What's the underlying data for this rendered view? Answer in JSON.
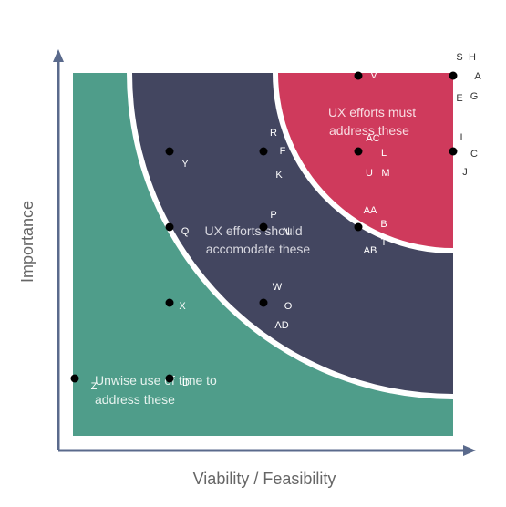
{
  "colors": {
    "green_zone": "#4f9d8a",
    "navy_zone": "#434660",
    "red_zone": "#cf3a5c",
    "axis": "#5a6a8c",
    "dot": "#000000"
  },
  "axes": {
    "x_title": "Viability / Feasibility",
    "y_title": "Importance"
  },
  "zones": {
    "green": [
      "Unwise use of time to",
      "address these"
    ],
    "navy": [
      "UX efforts should",
      "accomodate these"
    ],
    "red": [
      "UX efforts must",
      "address these"
    ]
  },
  "dots": [
    {
      "id": "dot-1",
      "col": 3,
      "row": 0
    },
    {
      "id": "dot-2",
      "col": 4,
      "row": 0
    },
    {
      "id": "dot-3",
      "col": 1,
      "row": 1
    },
    {
      "id": "dot-4",
      "col": 2,
      "row": 1
    },
    {
      "id": "dot-5",
      "col": 3,
      "row": 1
    },
    {
      "id": "dot-6",
      "col": 4,
      "row": 1
    },
    {
      "id": "dot-7",
      "col": 1,
      "row": 2
    },
    {
      "id": "dot-8",
      "col": 2,
      "row": 2
    },
    {
      "id": "dot-9",
      "col": 3,
      "row": 2
    },
    {
      "id": "dot-10",
      "col": 1,
      "row": 3
    },
    {
      "id": "dot-11",
      "col": 2,
      "row": 3
    },
    {
      "id": "dot-12",
      "col": 0,
      "row": 4
    },
    {
      "id": "dot-13",
      "col": 1,
      "row": 4
    }
  ],
  "letters": [
    {
      "text": "V",
      "pos": "v"
    },
    {
      "text": "S",
      "pos": "s"
    },
    {
      "text": "H",
      "pos": "h"
    },
    {
      "text": "A",
      "pos": "a"
    },
    {
      "text": "E",
      "pos": "e"
    },
    {
      "text": "G",
      "pos": "g"
    },
    {
      "text": "I",
      "pos": "i"
    },
    {
      "text": "C",
      "pos": "c"
    },
    {
      "text": "J",
      "pos": "j"
    },
    {
      "text": "R",
      "pos": "r"
    },
    {
      "text": "F",
      "pos": "f"
    },
    {
      "text": "K",
      "pos": "k"
    },
    {
      "text": "Y",
      "pos": "y"
    },
    {
      "text": "AC",
      "pos": "ac"
    },
    {
      "text": "L",
      "pos": "l"
    },
    {
      "text": "U",
      "pos": "u"
    },
    {
      "text": "M",
      "pos": "m"
    },
    {
      "text": "P",
      "pos": "p"
    },
    {
      "text": "N",
      "pos": "n"
    },
    {
      "text": "Q",
      "pos": "q"
    },
    {
      "text": "AA",
      "pos": "aa"
    },
    {
      "text": "B",
      "pos": "b"
    },
    {
      "text": "T",
      "pos": "t"
    },
    {
      "text": "AB",
      "pos": "ab"
    },
    {
      "text": "W",
      "pos": "w"
    },
    {
      "text": "O",
      "pos": "o"
    },
    {
      "text": "X",
      "pos": "x"
    },
    {
      "text": "AD",
      "pos": "ad"
    },
    {
      "text": "Z",
      "pos": "z"
    },
    {
      "text": "D",
      "pos": "d"
    }
  ]
}
